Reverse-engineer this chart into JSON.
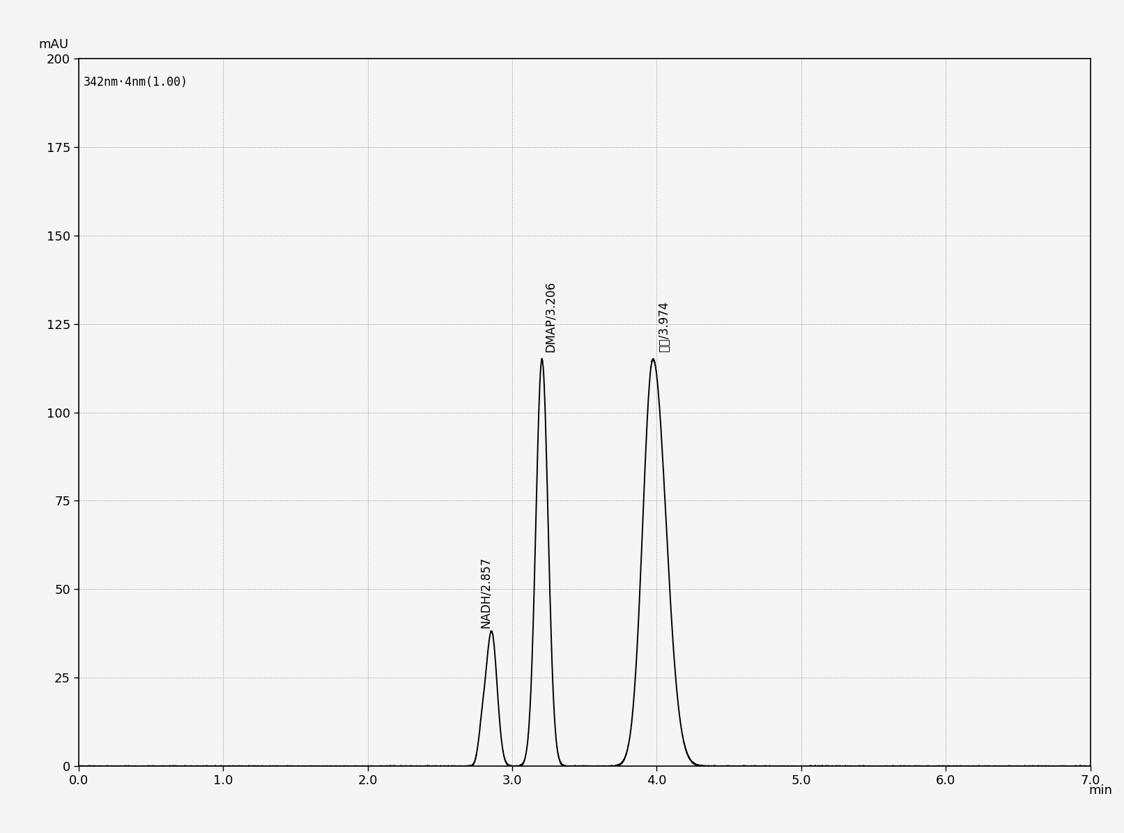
{
  "title_text": "342nm·4nm(1.00)",
  "ylabel": "mAU",
  "xlabel": "min",
  "xlim": [
    0.0,
    7.0
  ],
  "ylim": [
    0.0,
    200.0
  ],
  "yticks": [
    0,
    25,
    50,
    75,
    100,
    125,
    150,
    175,
    200
  ],
  "xticks": [
    0.0,
    1.0,
    2.0,
    3.0,
    4.0,
    5.0,
    6.0,
    7.0
  ],
  "peak1_label": "NADH/2.857",
  "peak1_x": 2.857,
  "peak1_height": 38,
  "peak1_sigma": 0.038,
  "peak2_label": "DMAP/3.206",
  "peak2_x": 3.206,
  "peak2_height": 115,
  "peak2_sigma": 0.042,
  "peak3_label": "水山/3.974",
  "peak3_x": 3.974,
  "peak3_height": 115,
  "peak3_sigma_l": 0.07,
  "peak3_sigma_r": 0.09,
  "line_color": "#000000",
  "grid_color": "#808080",
  "background_color": "#f5f5f5",
  "label_fontsize": 12,
  "tick_fontsize": 13,
  "ylabel_fontsize": 13,
  "xlabel_fontsize": 13
}
